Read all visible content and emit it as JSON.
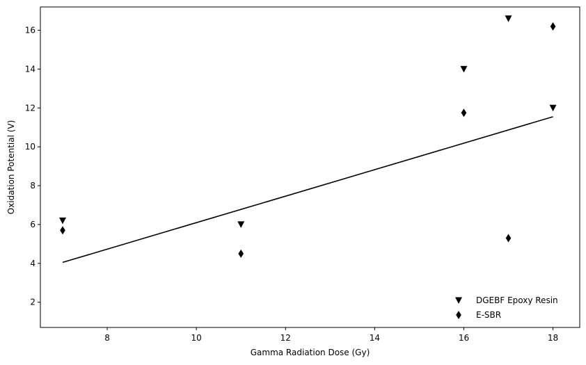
{
  "chart_data": {
    "type": "scatter",
    "title": "",
    "xlabel": "Gamma Radiation Dose (Gy)",
    "ylabel": "Oxidation Potential (V)",
    "xlim": [
      6.5,
      18.6
    ],
    "ylim": [
      0.7,
      17.2
    ],
    "xticks": [
      8,
      10,
      12,
      14,
      16,
      18
    ],
    "yticks": [
      2,
      4,
      6,
      8,
      10,
      12,
      14,
      16
    ],
    "grid": false,
    "legend_position": "lower-right",
    "series": [
      {
        "name": "DGEBF Epoxy Resin",
        "marker": "triangle-down",
        "color": "#000000",
        "x": [
          7,
          11,
          16,
          17,
          18
        ],
        "y": [
          6.2,
          6.0,
          14.0,
          16.6,
          12.0
        ]
      },
      {
        "name": "E-SBR",
        "marker": "thin-diamond",
        "color": "#000000",
        "x": [
          7,
          11,
          16,
          17,
          18
        ],
        "y": [
          5.7,
          4.5,
          11.75,
          5.3,
          16.2
        ]
      }
    ],
    "fit_line": {
      "color": "#000000",
      "x": [
        7,
        18
      ],
      "y": [
        4.05,
        11.55
      ]
    }
  }
}
